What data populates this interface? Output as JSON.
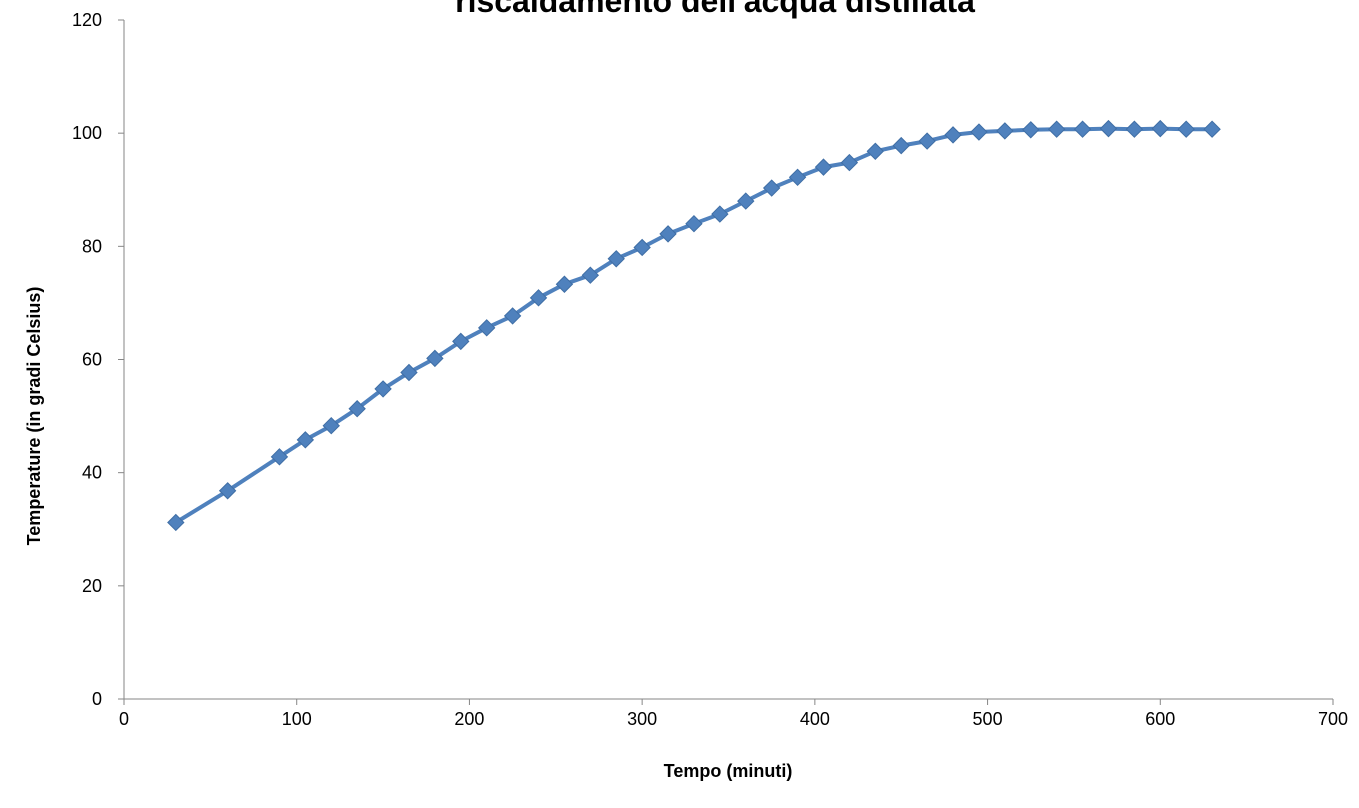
{
  "chart_data": {
    "type": "line",
    "title": "riscaldamento dell'acqua distillata",
    "xlabel": "Tempo (minuti)",
    "ylabel": "Temperature (in gradi Celsius)",
    "xlim": [
      0,
      700
    ],
    "ylim": [
      0,
      120
    ],
    "x_ticks": [
      0,
      100,
      200,
      300,
      400,
      500,
      600,
      700
    ],
    "y_ticks": [
      0,
      20,
      40,
      60,
      80,
      100,
      120
    ],
    "grid": false,
    "legend": "none",
    "series_color": "#4F81BD",
    "marker": "diamond",
    "x": [
      30,
      60,
      90,
      105,
      120,
      135,
      150,
      165,
      180,
      195,
      210,
      225,
      240,
      255,
      270,
      285,
      300,
      315,
      330,
      345,
      360,
      375,
      390,
      405,
      420,
      435,
      450,
      465,
      480,
      495,
      510,
      525,
      540,
      555,
      570,
      585,
      600,
      615,
      630
    ],
    "y": [
      31.2,
      36.8,
      42.8,
      45.8,
      48.3,
      51.3,
      54.8,
      57.7,
      60.2,
      63.2,
      65.6,
      67.7,
      70.9,
      73.3,
      74.9,
      77.8,
      79.8,
      82.2,
      84.0,
      85.7,
      88.0,
      90.3,
      92.2,
      94.0,
      94.8,
      96.8,
      97.8,
      98.6,
      99.7,
      100.2,
      100.4,
      100.6,
      100.7,
      100.7,
      100.8,
      100.7,
      100.8,
      100.7,
      100.7
    ]
  }
}
